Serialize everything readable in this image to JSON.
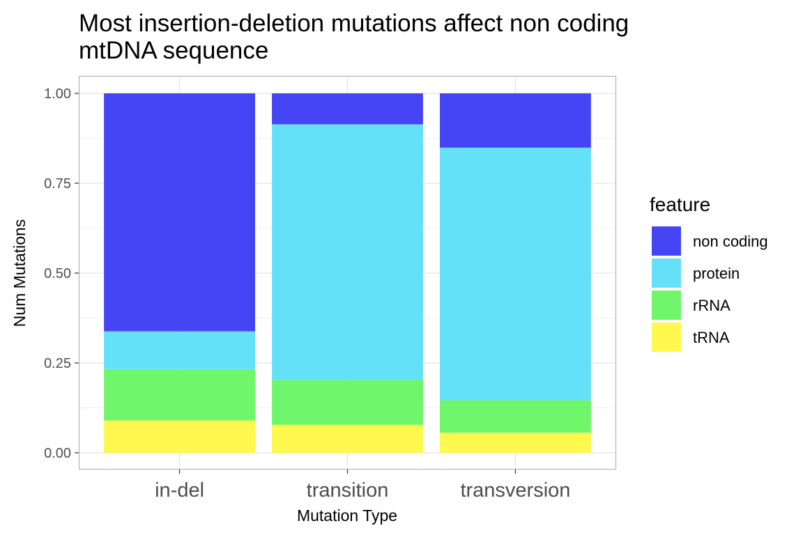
{
  "chart_data": {
    "type": "bar",
    "stacked": true,
    "title_lines": [
      "Most insertion-deletion mutations affect non coding",
      "mtDNA sequence"
    ],
    "xlabel": "Mutation Type",
    "ylabel": "Num Mutations",
    "categories": [
      "in-del",
      "transition",
      "transversion"
    ],
    "ylim": [
      0,
      1
    ],
    "yticks": [
      0,
      0.25,
      0.5,
      0.75,
      1
    ],
    "ytick_labels": [
      "0.00",
      "0.25",
      "0.50",
      "0.75",
      "1.00"
    ],
    "grid": true,
    "legend_title": "feature",
    "legend_position": "right",
    "series": [
      {
        "name": "tRNA",
        "color": "#FFF84E",
        "values": [
          0.09,
          0.078,
          0.056
        ]
      },
      {
        "name": "rRNA",
        "color": "#70F66A",
        "values": [
          0.143,
          0.125,
          0.09
        ]
      },
      {
        "name": "protein",
        "color": "#64E0F9",
        "values": [
          0.105,
          0.711,
          0.703
        ]
      },
      {
        "name": "non coding",
        "color": "#4545F6",
        "values": [
          0.662,
          0.086,
          0.151
        ]
      }
    ],
    "legend_order": [
      "non coding",
      "protein",
      "rRNA",
      "tRNA"
    ]
  }
}
